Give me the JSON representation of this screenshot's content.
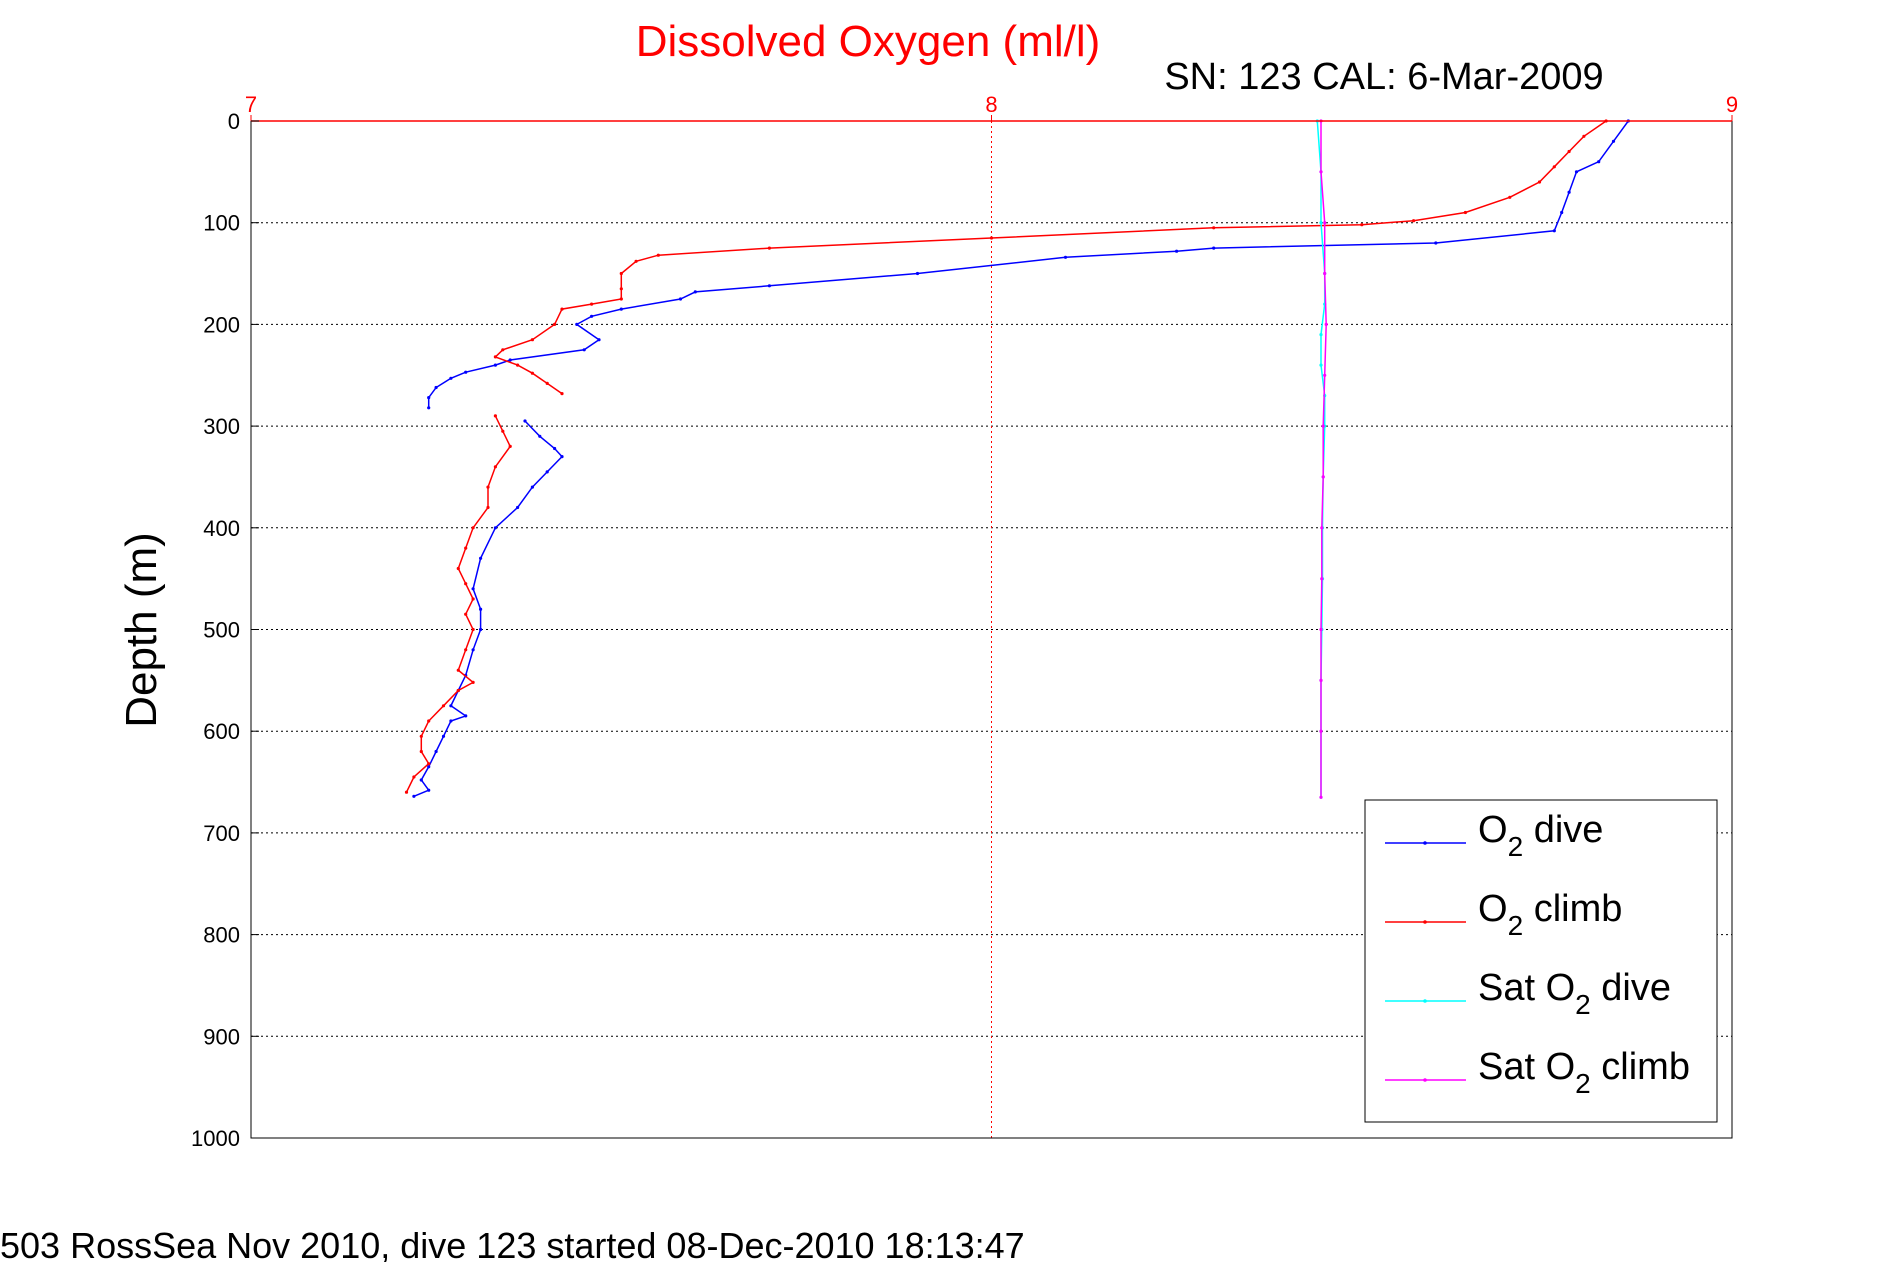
{
  "chart_data": {
    "type": "line",
    "title": "Dissolved Oxygen (ml/l)",
    "subtitle": "SN: 123  CAL: 6-Mar-2009",
    "xlabel": "",
    "ylabel": "Depth (m)",
    "caption": "503 RossSea Nov 2010, dive 123 started 08-Dec-2010 18:13:47",
    "xlim": [
      7,
      9
    ],
    "ylim": [
      0,
      1000
    ],
    "y_reversed": true,
    "x_axis_position": "top",
    "xticks": [
      "7",
      "8",
      "9"
    ],
    "yticks": [
      "0",
      "100",
      "200",
      "300",
      "400",
      "500",
      "600",
      "700",
      "800",
      "900",
      "1000"
    ],
    "grid": true,
    "legend_position": "bottom-right",
    "legend": [
      {
        "prefix": "O",
        "sub": "2",
        "suffix": " dive"
      },
      {
        "prefix": "O",
        "sub": "2",
        "suffix": " climb"
      },
      {
        "prefix": "Sat O",
        "sub": "2",
        "suffix": " dive"
      },
      {
        "prefix": "Sat O",
        "sub": "2",
        "suffix": " climb"
      }
    ],
    "series": [
      {
        "name": "O2 dive",
        "color": "#0000ff",
        "points": [
          [
            8.86,
            0
          ],
          [
            8.84,
            20
          ],
          [
            8.82,
            40
          ],
          [
            8.79,
            50
          ],
          [
            8.78,
            70
          ],
          [
            8.77,
            90
          ],
          [
            8.76,
            108
          ],
          [
            8.6,
            120
          ],
          [
            8.3,
            125
          ],
          [
            8.25,
            128
          ],
          [
            8.1,
            134
          ],
          [
            7.9,
            150
          ],
          [
            7.7,
            162
          ],
          [
            7.6,
            168
          ],
          [
            7.58,
            175
          ],
          [
            7.5,
            185
          ],
          [
            7.46,
            192
          ],
          [
            7.44,
            200
          ],
          [
            7.47,
            215
          ],
          [
            7.45,
            225
          ],
          [
            7.35,
            235
          ],
          [
            7.33,
            240
          ],
          [
            7.29,
            247
          ],
          [
            7.27,
            253
          ],
          [
            7.25,
            262
          ],
          [
            7.24,
            272
          ],
          [
            7.24,
            282
          ]
        ]
      },
      {
        "name": "O2 dive (deep)",
        "color": "#0000ff",
        "points": [
          [
            7.37,
            295
          ],
          [
            7.39,
            310
          ],
          [
            7.41,
            322
          ],
          [
            7.42,
            330
          ],
          [
            7.4,
            345
          ],
          [
            7.38,
            360
          ],
          [
            7.36,
            380
          ],
          [
            7.33,
            400
          ],
          [
            7.31,
            430
          ],
          [
            7.3,
            460
          ],
          [
            7.31,
            480
          ],
          [
            7.31,
            500
          ],
          [
            7.3,
            520
          ],
          [
            7.29,
            545
          ],
          [
            7.28,
            560
          ],
          [
            7.27,
            575
          ],
          [
            7.29,
            585
          ],
          [
            7.27,
            590
          ],
          [
            7.26,
            605
          ],
          [
            7.25,
            620
          ],
          [
            7.24,
            635
          ],
          [
            7.23,
            648
          ],
          [
            7.24,
            658
          ],
          [
            7.22,
            664
          ]
        ]
      },
      {
        "name": "O2 climb",
        "color": "#ff0000",
        "points": [
          [
            8.83,
            0
          ],
          [
            8.8,
            15
          ],
          [
            8.78,
            30
          ],
          [
            8.76,
            45
          ],
          [
            8.74,
            60
          ],
          [
            8.7,
            75
          ],
          [
            8.64,
            90
          ],
          [
            8.57,
            98
          ],
          [
            8.5,
            102
          ],
          [
            8.3,
            105
          ],
          [
            8.0,
            115
          ],
          [
            7.7,
            125
          ],
          [
            7.55,
            132
          ],
          [
            7.52,
            138
          ],
          [
            7.5,
            150
          ],
          [
            7.5,
            165
          ],
          [
            7.5,
            175
          ],
          [
            7.46,
            180
          ],
          [
            7.42,
            185
          ],
          [
            7.41,
            200
          ],
          [
            7.38,
            215
          ],
          [
            7.34,
            225
          ],
          [
            7.33,
            232
          ],
          [
            7.36,
            240
          ],
          [
            7.38,
            248
          ],
          [
            7.4,
            258
          ],
          [
            7.42,
            268
          ]
        ]
      },
      {
        "name": "O2 climb (deep)",
        "color": "#ff0000",
        "points": [
          [
            7.33,
            290
          ],
          [
            7.34,
            305
          ],
          [
            7.35,
            320
          ],
          [
            7.33,
            340
          ],
          [
            7.32,
            360
          ],
          [
            7.32,
            380
          ],
          [
            7.3,
            400
          ],
          [
            7.29,
            420
          ],
          [
            7.28,
            440
          ],
          [
            7.29,
            455
          ],
          [
            7.3,
            470
          ],
          [
            7.29,
            485
          ],
          [
            7.3,
            500
          ],
          [
            7.29,
            520
          ],
          [
            7.28,
            540
          ],
          [
            7.3,
            552
          ],
          [
            7.28,
            560
          ],
          [
            7.26,
            575
          ],
          [
            7.24,
            590
          ],
          [
            7.23,
            605
          ],
          [
            7.23,
            620
          ],
          [
            7.24,
            632
          ],
          [
            7.22,
            645
          ],
          [
            7.21,
            660
          ]
        ]
      },
      {
        "name": "Sat O2 dive",
        "color": "#00ffff",
        "points": [
          [
            8.44,
            0
          ],
          [
            8.445,
            50
          ],
          [
            8.445,
            100
          ],
          [
            8.45,
            150
          ],
          [
            8.45,
            180
          ],
          [
            8.445,
            210
          ],
          [
            8.445,
            240
          ],
          [
            8.45,
            270
          ],
          [
            8.45,
            300
          ],
          [
            8.448,
            350
          ],
          [
            8.447,
            400
          ],
          [
            8.447,
            450
          ],
          [
            8.446,
            500
          ],
          [
            8.445,
            550
          ],
          [
            8.445,
            600
          ],
          [
            8.445,
            665
          ]
        ]
      },
      {
        "name": "Sat O2 climb",
        "color": "#ff00ff",
        "points": [
          [
            8.445,
            0
          ],
          [
            8.445,
            50
          ],
          [
            8.45,
            100
          ],
          [
            8.45,
            150
          ],
          [
            8.452,
            200
          ],
          [
            8.45,
            250
          ],
          [
            8.448,
            300
          ],
          [
            8.448,
            350
          ],
          [
            8.446,
            400
          ],
          [
            8.446,
            450
          ],
          [
            8.445,
            500
          ],
          [
            8.445,
            550
          ],
          [
            8.445,
            600
          ],
          [
            8.445,
            665
          ]
        ]
      }
    ]
  }
}
